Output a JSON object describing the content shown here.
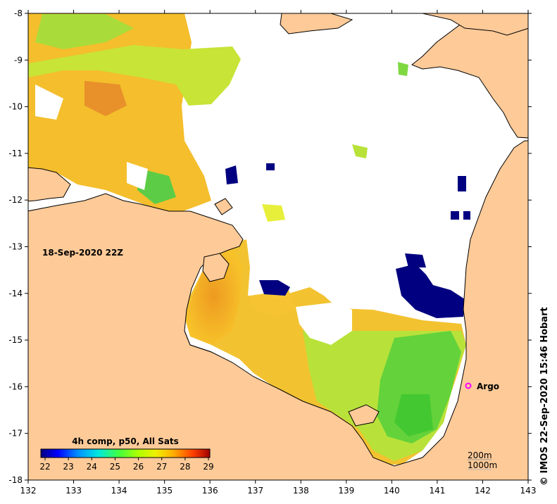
{
  "timestamp": "18-Sep-2020 22Z",
  "credit": "© IMOS 22-Sep-2020 15:46 Hobart",
  "legend": {
    "title": "4h comp, p50, All Sats",
    "ticks": [
      "22",
      "23",
      "24",
      "25",
      "26",
      "27",
      "28",
      "29"
    ],
    "colors": [
      "#00007f",
      "#0000ff",
      "#0080ff",
      "#00e0ff",
      "#40ff40",
      "#a0ff00",
      "#e8ff00",
      "#ffd000",
      "#ff8000",
      "#ff2000",
      "#a00000"
    ]
  },
  "axes": {
    "x_ticks": [
      "132",
      "133",
      "134",
      "135",
      "136",
      "137",
      "138",
      "139",
      "140",
      "141",
      "142",
      "143"
    ],
    "y_ticks": [
      "-8",
      "-9",
      "-10",
      "-11",
      "-12",
      "-13",
      "-14",
      "-15",
      "-16",
      "-17",
      "-18"
    ]
  },
  "marker": {
    "label": "Argo",
    "color": "#ff00ff"
  },
  "contours": {
    "shallow": "200m",
    "deep": "1000m"
  },
  "colors": {
    "land": "#fdca98",
    "no_data": "#ffffff",
    "coast": "#000000"
  }
}
